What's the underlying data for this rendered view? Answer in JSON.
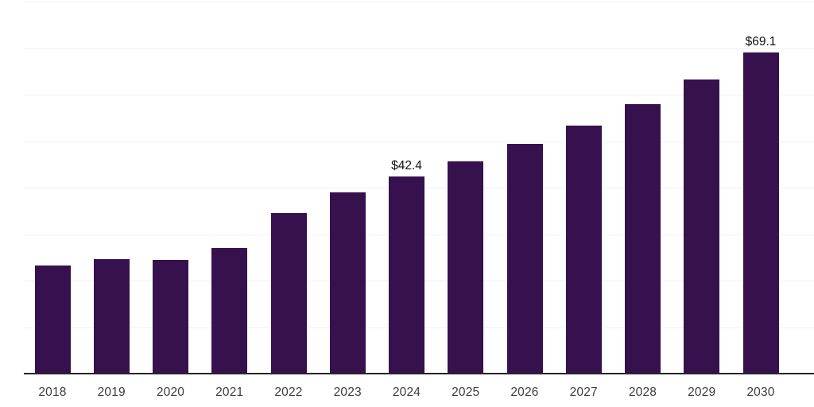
{
  "chart_data": {
    "type": "bar",
    "title": "",
    "xlabel": "",
    "ylabel": "",
    "categories": [
      "2018",
      "2019",
      "2020",
      "2021",
      "2022",
      "2023",
      "2024",
      "2025",
      "2026",
      "2027",
      "2028",
      "2029",
      "2030"
    ],
    "values": [
      23.3,
      24.6,
      24.4,
      27.0,
      34.6,
      38.9,
      42.4,
      45.6,
      49.4,
      53.4,
      58.0,
      63.2,
      69.1
    ],
    "data_labels": [
      {
        "category": "2024",
        "text": "$42.4"
      },
      {
        "category": "2030",
        "text": "$69.1"
      }
    ],
    "ylim": [
      0,
      80
    ],
    "gridline_step": 10,
    "grid": true,
    "legend": false,
    "colors": {
      "bar": "#37114E",
      "axis_line": "#262626",
      "gridline": "#f0f0f2",
      "tick_label": "#3d3d3d",
      "data_label": "#111111",
      "background": "#ffffff"
    }
  }
}
